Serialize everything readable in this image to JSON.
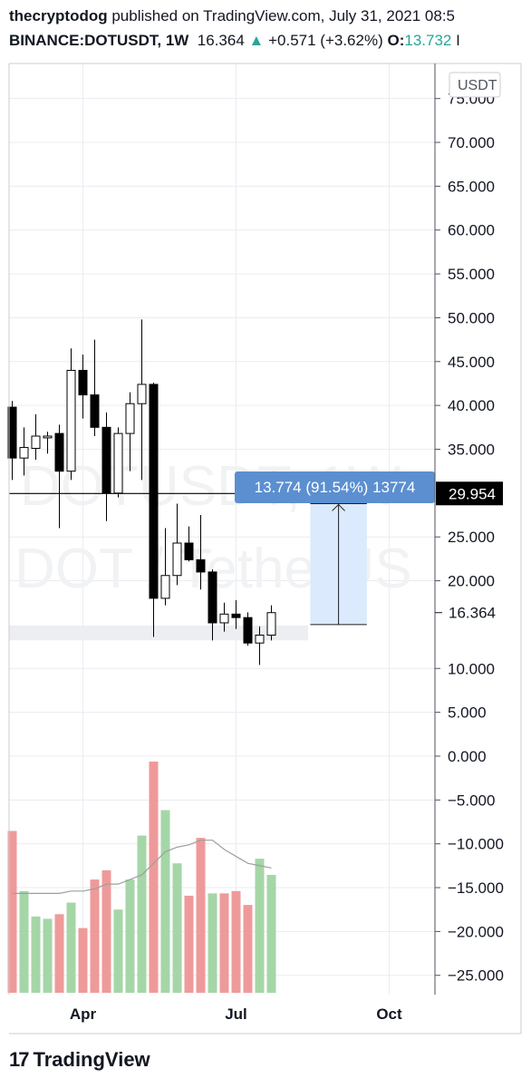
{
  "header": {
    "author": "thecryptodog",
    "published": "published on TradingView.com, July 31, 2021 08:5",
    "symbol": "BINANCE:DOTUSDT, 1W",
    "last": "16.364",
    "change": "+0.571 (+3.62%)",
    "open_label": "O:",
    "open_value": "13.732",
    "tail": "I"
  },
  "footer": {
    "brand": "TradingView",
    "brand_mark": "17"
  },
  "watermark": {
    "line1": "DOTUSDT, 1W",
    "line2": "DOT / TetherUS"
  },
  "colors": {
    "bull": "#ffffff",
    "bear": "#000000",
    "vol_up": "#a5d6a7",
    "vol_down": "#ef9a9a",
    "measure_fill": "#dbeafc",
    "measure_label": "#5b8fd0",
    "grid": "#e9ecf2"
  },
  "chart_data": {
    "type": "candlestick",
    "currency_label": "USDT",
    "y_ticks": [
      75,
      70,
      65,
      60,
      55,
      50,
      45,
      40,
      35,
      25,
      20,
      10,
      5,
      0,
      -5,
      -10,
      -15,
      -20,
      -25
    ],
    "y_tick_labels": [
      "75.000",
      "70.000",
      "65.000",
      "60.000",
      "55.000",
      "50.000",
      "45.000",
      "40.000",
      "35.000",
      "25.000",
      "20.000",
      "10.000",
      "5.000",
      "0.000",
      "−5.000",
      "−10.000",
      "−15.000",
      "−20.000",
      "−25.000"
    ],
    "ylim": [
      -27.2,
      79
    ],
    "x_tick_labels": [
      {
        "label": "Apr",
        "week": 6
      },
      {
        "label": "Jul",
        "week": 19
      },
      {
        "label": "Oct",
        "week": 32
      }
    ],
    "price_marks": [
      {
        "label": "29.954",
        "value": 29.954,
        "style": "dark"
      },
      {
        "label": "16.364",
        "value": 16.364,
        "style": "plain"
      }
    ],
    "horizontal_line": 29.954,
    "measure": {
      "label": "13.774 (91.54%) 13774",
      "from": 15.0,
      "to": 28.8,
      "week_start": 25.3,
      "week_end": 30.1
    },
    "support_zone": {
      "from": 13.2,
      "to": 14.9
    },
    "candles": [
      {
        "o": 39.8,
        "h": 40.5,
        "l": 31.5,
        "c": 34.0
      },
      {
        "o": 34.0,
        "h": 37.5,
        "l": 32.0,
        "c": 35.2
      },
      {
        "o": 35.1,
        "h": 39.0,
        "l": 33.8,
        "c": 36.5
      },
      {
        "o": 36.3,
        "h": 37.0,
        "l": 34.5,
        "c": 36.5
      },
      {
        "o": 36.8,
        "h": 37.8,
        "l": 26.0,
        "c": 32.5
      },
      {
        "o": 32.5,
        "h": 46.5,
        "l": 31.5,
        "c": 44.0
      },
      {
        "o": 44.0,
        "h": 45.8,
        "l": 38.5,
        "c": 41.2
      },
      {
        "o": 41.2,
        "h": 47.5,
        "l": 36.5,
        "c": 37.5
      },
      {
        "o": 37.5,
        "h": 39.2,
        "l": 26.8,
        "c": 30.0
      },
      {
        "o": 30.0,
        "h": 37.5,
        "l": 29.5,
        "c": 36.8
      },
      {
        "o": 36.8,
        "h": 41.5,
        "l": 32.5,
        "c": 40.2
      },
      {
        "o": 40.2,
        "h": 49.8,
        "l": 31.5,
        "c": 42.4
      },
      {
        "o": 42.4,
        "h": 42.6,
        "l": 13.6,
        "c": 18.0
      },
      {
        "o": 18.0,
        "h": 26.0,
        "l": 17.2,
        "c": 20.6
      },
      {
        "o": 20.6,
        "h": 28.8,
        "l": 19.5,
        "c": 24.3
      },
      {
        "o": 24.3,
        "h": 26.2,
        "l": 22.2,
        "c": 22.4
      },
      {
        "o": 22.4,
        "h": 27.5,
        "l": 19.0,
        "c": 21.0
      },
      {
        "o": 21.0,
        "h": 21.3,
        "l": 13.2,
        "c": 15.2
      },
      {
        "o": 15.2,
        "h": 17.5,
        "l": 14.2,
        "c": 16.2
      },
      {
        "o": 16.2,
        "h": 17.8,
        "l": 14.5,
        "c": 15.8
      },
      {
        "o": 15.8,
        "h": 16.4,
        "l": 12.6,
        "c": 12.9
      },
      {
        "o": 12.9,
        "h": 14.8,
        "l": 10.4,
        "c": 13.8
      },
      {
        "o": 13.8,
        "h": 17.2,
        "l": 13.2,
        "c": 16.364
      }
    ],
    "volume": [
      {
        "v": 0.7,
        "up": false
      },
      {
        "v": 0.44,
        "up": true
      },
      {
        "v": 0.33,
        "up": true
      },
      {
        "v": 0.32,
        "up": true
      },
      {
        "v": 0.34,
        "up": false
      },
      {
        "v": 0.39,
        "up": true
      },
      {
        "v": 0.28,
        "up": false
      },
      {
        "v": 0.49,
        "up": false
      },
      {
        "v": 0.53,
        "up": false
      },
      {
        "v": 0.36,
        "up": true
      },
      {
        "v": 0.49,
        "up": true
      },
      {
        "v": 0.68,
        "up": true
      },
      {
        "v": 1.0,
        "up": false
      },
      {
        "v": 0.79,
        "up": true
      },
      {
        "v": 0.56,
        "up": true
      },
      {
        "v": 0.42,
        "up": false
      },
      {
        "v": 0.67,
        "up": false
      },
      {
        "v": 0.43,
        "up": true
      },
      {
        "v": 0.43,
        "up": false
      },
      {
        "v": 0.44,
        "up": false
      },
      {
        "v": 0.38,
        "up": false
      },
      {
        "v": 0.58,
        "up": true
      },
      {
        "v": 0.51,
        "up": true
      }
    ],
    "volume_ma": [
      0.43,
      0.43,
      0.43,
      0.43,
      0.43,
      0.44,
      0.44,
      0.45,
      0.47,
      0.47,
      0.49,
      0.51,
      0.56,
      0.61,
      0.63,
      0.64,
      0.66,
      0.66,
      0.62,
      0.59,
      0.56,
      0.55,
      0.54
    ]
  }
}
